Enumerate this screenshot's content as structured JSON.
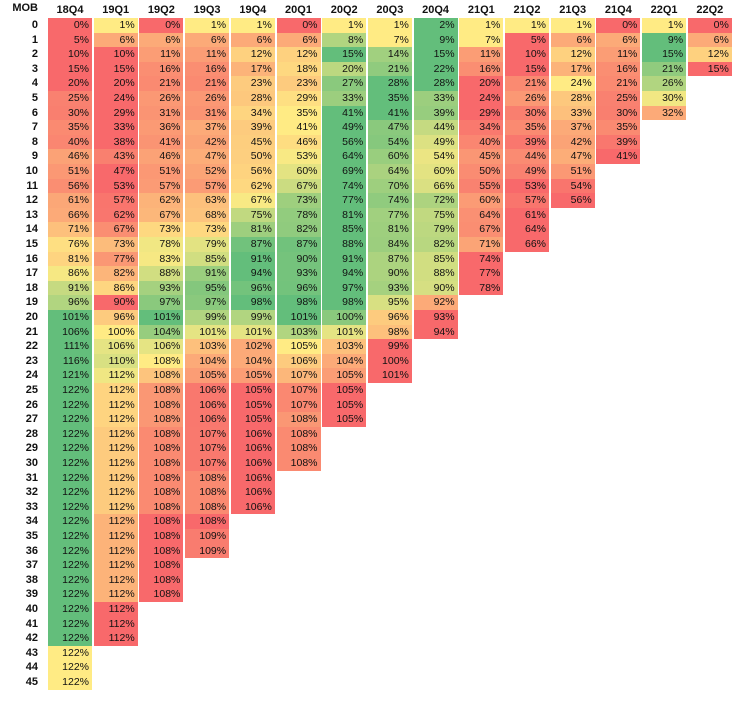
{
  "chart_data": {
    "type": "heatmap",
    "row_header_label": "MOB",
    "columns": [
      "18Q4",
      "19Q1",
      "19Q2",
      "19Q3",
      "19Q4",
      "20Q1",
      "20Q2",
      "20Q3",
      "20Q4",
      "21Q1",
      "21Q2",
      "21Q3",
      "21Q4",
      "22Q1",
      "22Q2"
    ],
    "rows": [
      "0",
      "1",
      "2",
      "3",
      "4",
      "5",
      "6",
      "7",
      "8",
      "9",
      "10",
      "11",
      "12",
      "13",
      "14",
      "15",
      "16",
      "17",
      "18",
      "19",
      "20",
      "21",
      "22",
      "23",
      "24",
      "25",
      "26",
      "27",
      "28",
      "29",
      "30",
      "31",
      "32",
      "33",
      "34",
      "35",
      "36",
      "37",
      "38",
      "39",
      "40",
      "41",
      "42",
      "43",
      "44",
      "45"
    ],
    "values": [
      [
        0,
        1,
        0,
        1,
        1,
        0,
        1,
        1,
        2,
        1,
        1,
        1,
        0,
        1,
        0
      ],
      [
        5,
        6,
        6,
        6,
        6,
        6,
        8,
        7,
        9,
        7,
        5,
        6,
        6,
        9,
        6
      ],
      [
        10,
        10,
        11,
        11,
        12,
        12,
        15,
        14,
        15,
        11,
        10,
        12,
        11,
        15,
        12
      ],
      [
        15,
        15,
        16,
        16,
        17,
        18,
        20,
        21,
        22,
        16,
        15,
        17,
        16,
        21,
        15
      ],
      [
        20,
        20,
        21,
        21,
        23,
        23,
        27,
        28,
        28,
        20,
        21,
        24,
        21,
        26
      ],
      [
        25,
        24,
        26,
        26,
        28,
        29,
        33,
        35,
        33,
        24,
        26,
        28,
        25,
        30
      ],
      [
        30,
        29,
        31,
        31,
        34,
        35,
        41,
        41,
        39,
        29,
        30,
        33,
        30,
        32
      ],
      [
        35,
        33,
        36,
        37,
        39,
        41,
        49,
        47,
        44,
        34,
        35,
        37,
        35
      ],
      [
        40,
        38,
        41,
        42,
        45,
        46,
        56,
        54,
        49,
        40,
        39,
        42,
        39
      ],
      [
        46,
        43,
        46,
        47,
        50,
        53,
        64,
        60,
        54,
        45,
        44,
        47,
        41
      ],
      [
        51,
        47,
        51,
        52,
        56,
        60,
        69,
        64,
        60,
        50,
        49,
        51
      ],
      [
        56,
        53,
        57,
        57,
        62,
        67,
        74,
        70,
        66,
        55,
        53,
        54
      ],
      [
        61,
        57,
        62,
        63,
        67,
        73,
        77,
        74,
        72,
        60,
        57,
        56
      ],
      [
        66,
        62,
        67,
        68,
        75,
        78,
        81,
        77,
        75,
        64,
        61
      ],
      [
        71,
        67,
        73,
        73,
        81,
        82,
        85,
        81,
        79,
        67,
        64
      ],
      [
        76,
        73,
        78,
        79,
        87,
        87,
        88,
        84,
        82,
        71,
        66
      ],
      [
        81,
        77,
        83,
        85,
        91,
        90,
        91,
        87,
        85,
        74
      ],
      [
        86,
        82,
        88,
        91,
        94,
        93,
        94,
        90,
        88,
        77
      ],
      [
        91,
        86,
        93,
        95,
        96,
        96,
        97,
        93,
        90,
        78
      ],
      [
        96,
        90,
        97,
        97,
        98,
        98,
        98,
        95,
        92
      ],
      [
        101,
        96,
        101,
        99,
        99,
        101,
        100,
        96,
        93
      ],
      [
        106,
        100,
        104,
        101,
        101,
        103,
        101,
        98,
        94
      ],
      [
        111,
        106,
        106,
        103,
        102,
        105,
        103,
        99
      ],
      [
        116,
        110,
        108,
        104,
        104,
        106,
        104,
        100
      ],
      [
        121,
        112,
        108,
        105,
        105,
        107,
        105,
        101
      ],
      [
        122,
        112,
        108,
        106,
        105,
        107,
        105
      ],
      [
        122,
        112,
        108,
        106,
        105,
        107,
        105
      ],
      [
        122,
        112,
        108,
        106,
        105,
        108,
        105
      ],
      [
        122,
        112,
        108,
        107,
        106,
        108
      ],
      [
        122,
        112,
        108,
        107,
        106,
        108
      ],
      [
        122,
        112,
        108,
        107,
        106,
        108
      ],
      [
        122,
        112,
        108,
        108,
        106
      ],
      [
        122,
        112,
        108,
        108,
        106
      ],
      [
        122,
        112,
        108,
        108,
        106
      ],
      [
        122,
        112,
        108,
        108
      ],
      [
        122,
        112,
        108,
        109
      ],
      [
        122,
        112,
        108,
        109
      ],
      [
        122,
        112,
        108
      ],
      [
        122,
        112,
        108
      ],
      [
        122,
        112,
        108
      ],
      [
        122,
        112
      ],
      [
        122,
        112
      ],
      [
        122,
        112
      ],
      [
        122
      ],
      [
        122
      ],
      [
        122
      ]
    ],
    "unit": "%",
    "colors": {
      "low": "#f8696b",
      "mid": "#ffeb84",
      "high": "#63be7b"
    },
    "color_scale": "per-row (each MOB row colored red=lowest, yellow=middle, green=highest)",
    "grid": false
  }
}
